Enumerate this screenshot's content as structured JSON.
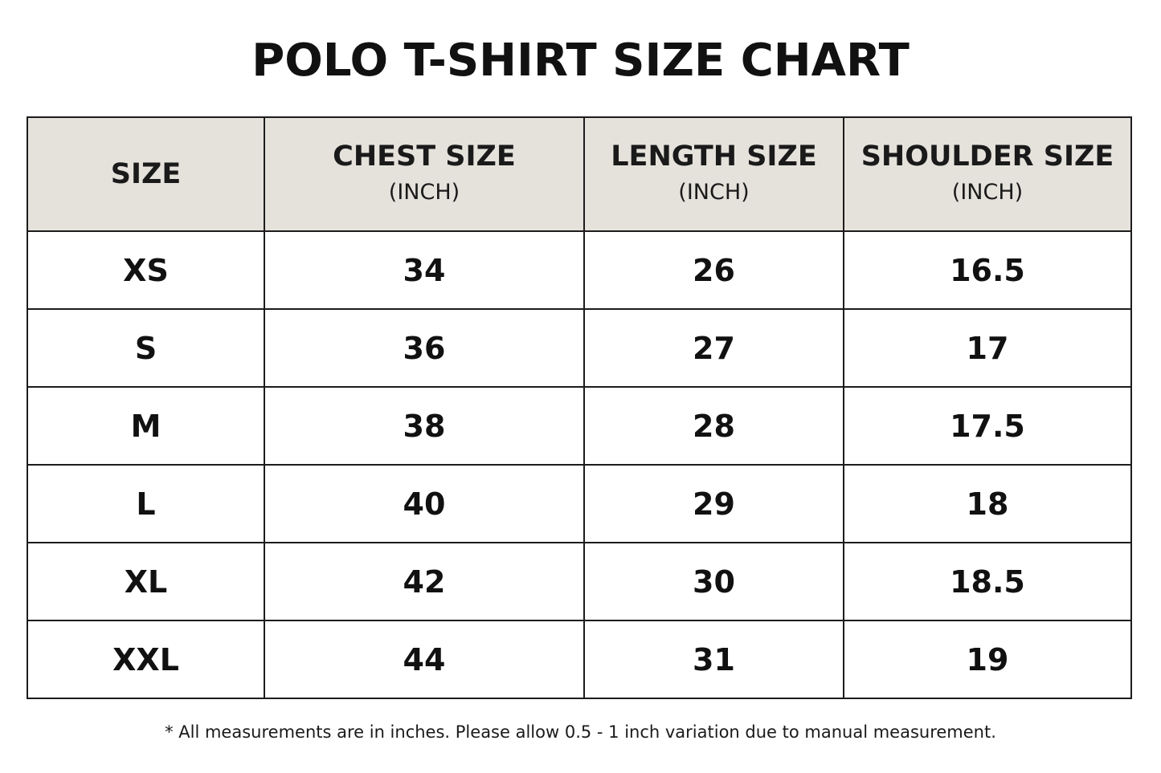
{
  "title": "POLO T-SHIRT SIZE CHART",
  "colors": {
    "header_background": "#e5e2dc",
    "border": "#1c1c1c",
    "text": "#111111"
  },
  "table": {
    "headers": [
      {
        "label": "SIZE",
        "unit": ""
      },
      {
        "label": "CHEST SIZE",
        "unit": "(INCH)"
      },
      {
        "label": "LENGTH SIZE",
        "unit": "(INCH)"
      },
      {
        "label": "SHOULDER SIZE",
        "unit": "(INCH)"
      }
    ],
    "rows": [
      [
        "XS",
        "34",
        "26",
        "16.5"
      ],
      [
        "S",
        "36",
        "27",
        "17"
      ],
      [
        "M",
        "38",
        "28",
        "17.5"
      ],
      [
        "L",
        "40",
        "29",
        "18"
      ],
      [
        "XL",
        "42",
        "30",
        "18.5"
      ],
      [
        "XXL",
        "44",
        "31",
        "19"
      ]
    ]
  },
  "footnote": "* All measurements are in inches. Please allow 0.5 - 1 inch variation due to manual measurement."
}
